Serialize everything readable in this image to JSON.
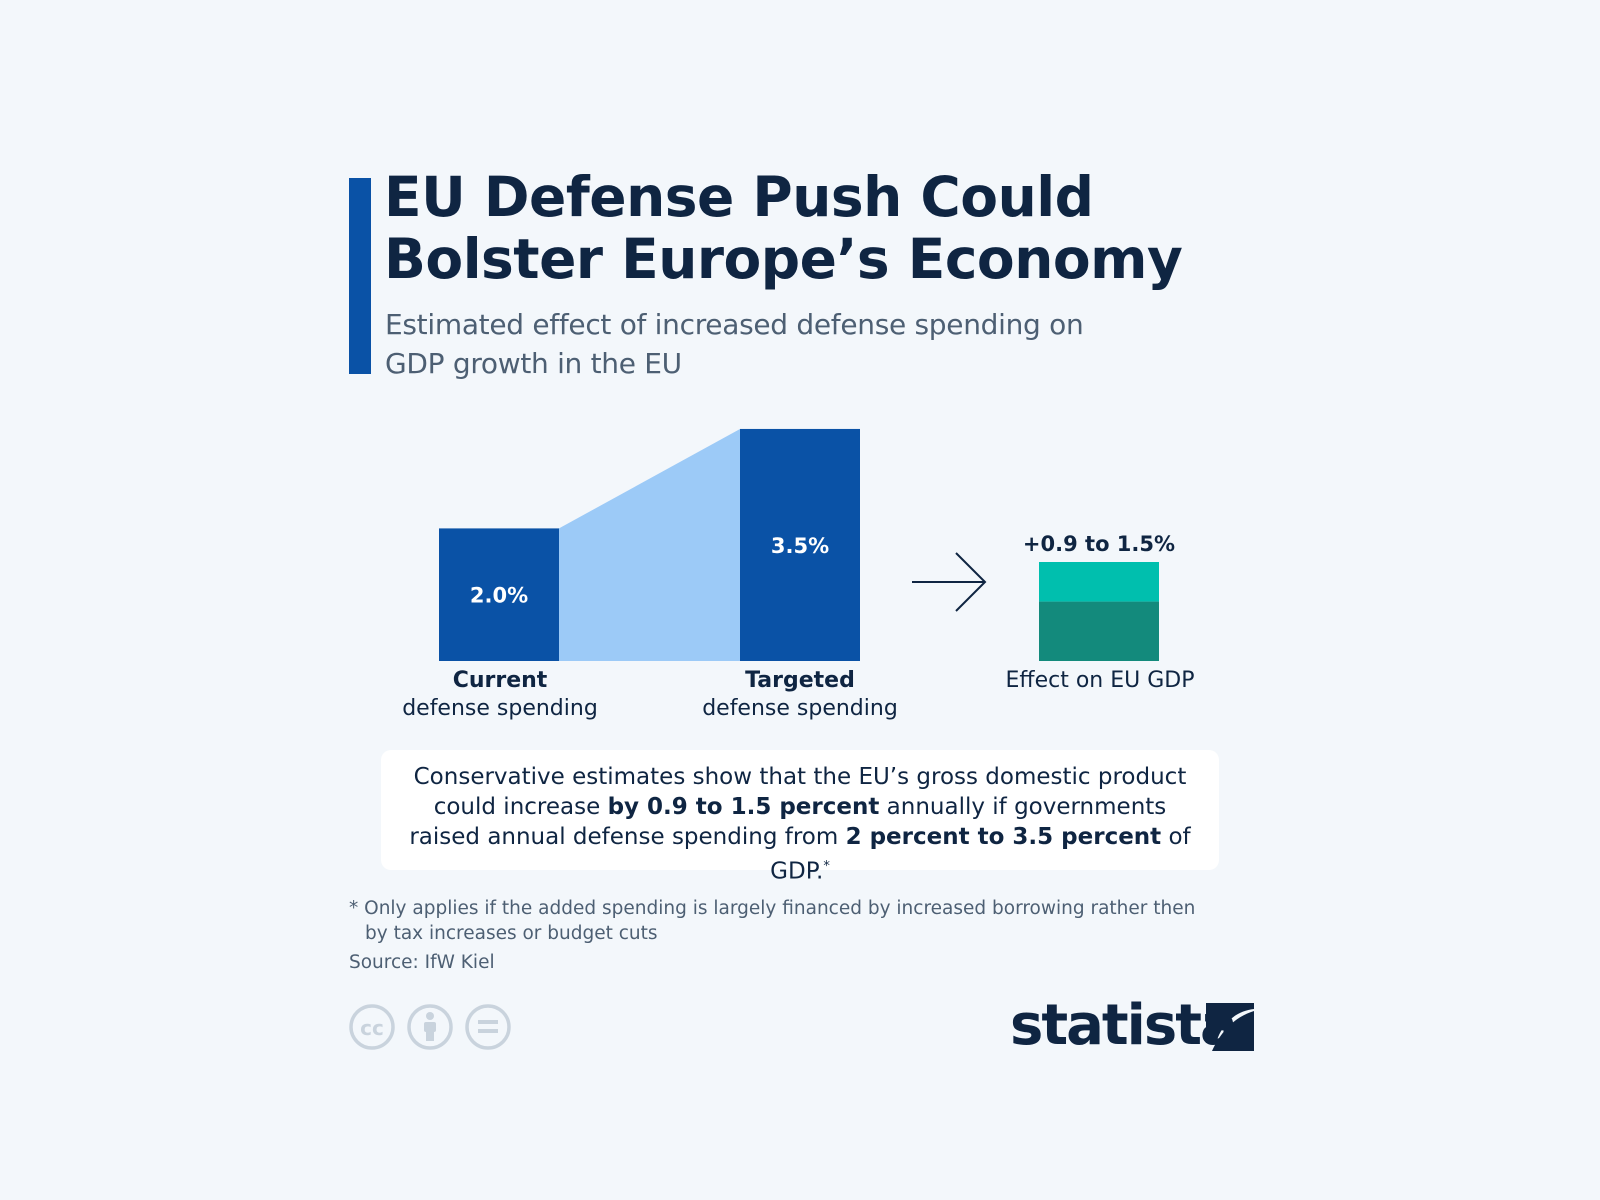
{
  "title": "EU Defense Push Could Bolster Europe’s Economy",
  "subtitle": "Estimated effect of increased defense spending on GDP growth in the EU",
  "chart_data": {
    "type": "bar",
    "unit": "% of GDP",
    "categories": [
      "Current defense spending",
      "Targeted defense spending"
    ],
    "values": [
      2.0,
      3.5
    ],
    "value_labels": [
      "2.0%",
      "3.5%"
    ],
    "effect": {
      "label": "Effect on EU GDP",
      "value_label": "+0.9 to 1.5%",
      "low": 0.9,
      "high": 1.5
    },
    "colors": {
      "bar": "#0a52a6",
      "connector": "#9ccaf7",
      "effect_high": "#00bfae",
      "effect_low": "#138a7c",
      "arrow": "#0f2542"
    }
  },
  "captions": {
    "current_strong": "Current",
    "current_rest": "defense spending",
    "targeted_strong": "Targeted",
    "targeted_rest": "defense spending",
    "effect": "Effect on EU GDP"
  },
  "callout": {
    "part1": "Conservative estimates show that the EU’s gross domestic product could increase ",
    "bold1": "by 0.9 to 1.5 percent",
    "part2": " annually if governments raised annual defense spending from ",
    "bold2": "2 percent to 3.5 percent",
    "part3": " of GDP.",
    "sup": "*"
  },
  "footnote": {
    "line1": "* Only applies if the added spending is largely financed by increased borrowing rather then",
    "line2": "by tax increases or budget cuts"
  },
  "source": "Source: IfW Kiel",
  "license_icons": [
    "creative-commons-icon",
    "attribution-icon",
    "no-derivatives-icon"
  ],
  "logo": {
    "text": "statista",
    "colors": {
      "text": "#0f2542",
      "mark": "#0f2542"
    }
  },
  "colors": {
    "background": "#f3f7fb",
    "accent": "#0a52a6",
    "title": "#0f2542",
    "subtitle": "#4d5f73"
  }
}
